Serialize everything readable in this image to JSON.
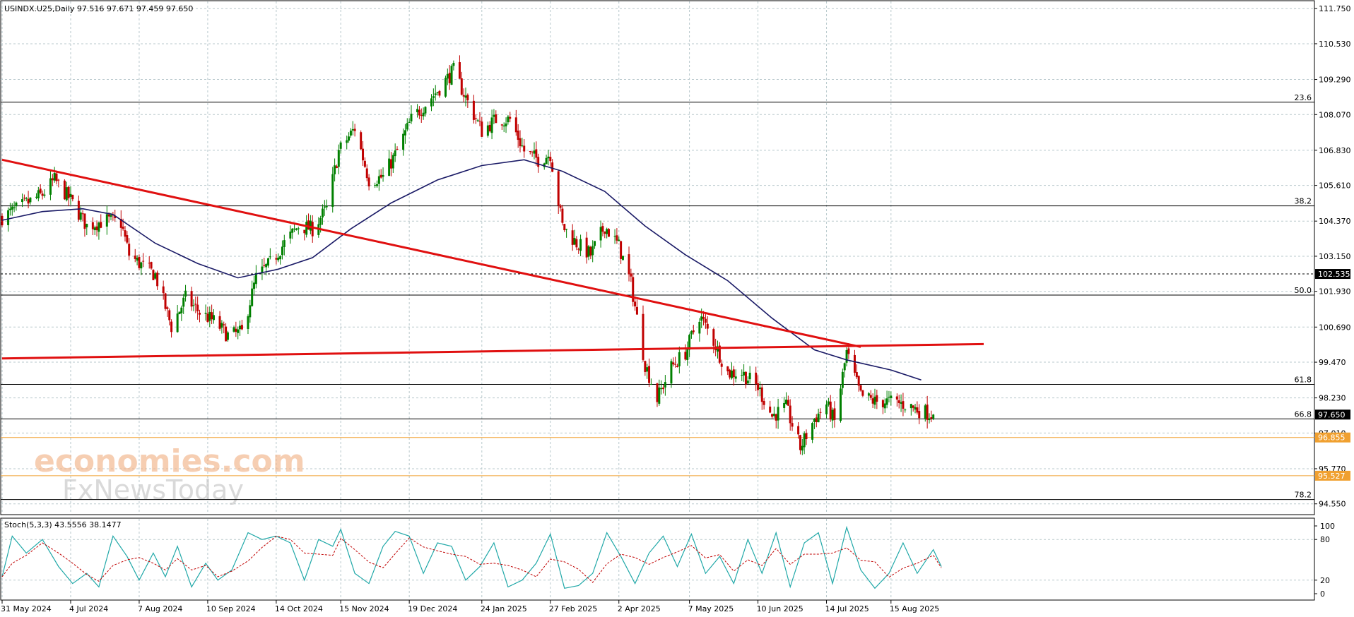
{
  "header": {
    "title": "USINDX.U25,Daily  97.516 97.671 97.459 97.650",
    "stoch_label": "Stoch(5,3,3) 43.5556 38.1477"
  },
  "watermark": {
    "line1": "economies.com",
    "line2": "FxNewsToday"
  },
  "colors": {
    "bull": "#008000",
    "bear": "#c00000",
    "ma": "#1a1a66",
    "trend": "#e01010",
    "grid": "#b8c8cc",
    "support": "#f0a030",
    "stoch_main": "#20a8a8",
    "stoch_signal": "#c00000"
  },
  "chart_data": [
    {
      "type": "candlestick",
      "symbol": "USINDX.U25",
      "timeframe": "Daily",
      "last": {
        "open": 97.516,
        "high": 97.671,
        "low": 97.459,
        "close": 97.65
      },
      "ylim": [
        94.2,
        112.0
      ],
      "y_ticks": [
        111.75,
        110.53,
        109.29,
        108.07,
        106.83,
        105.61,
        104.37,
        103.15,
        101.93,
        100.69,
        99.47,
        98.23,
        97.01,
        95.77,
        94.55
      ],
      "y_tick_labels": [
        "111.750",
        "110.530",
        "109.290",
        "108.070",
        "106.830",
        "105.610",
        "104.370",
        "103.150",
        "101.930",
        "100.690",
        "99.470",
        "98.230",
        "97.010",
        "95.770",
        "94.550"
      ],
      "x_labels": [
        {
          "label": "31 May 2024",
          "date": "2024-05-31"
        },
        {
          "label": "4 Jul 2024",
          "date": "2024-07-04"
        },
        {
          "label": "7 Aug 2024",
          "date": "2024-08-07"
        },
        {
          "label": "10 Sep 2024",
          "date": "2024-09-10"
        },
        {
          "label": "14 Oct 2024",
          "date": "2024-10-14"
        },
        {
          "label": "15 Nov 2024",
          "date": "2024-11-15"
        },
        {
          "label": "19 Dec 2024",
          "date": "2024-12-19"
        },
        {
          "label": "24 Jan 2025",
          "date": "2025-01-24"
        },
        {
          "label": "27 Feb 2025",
          "date": "2025-02-27"
        },
        {
          "label": "2 Apr 2025",
          "date": "2025-04-02"
        },
        {
          "label": "7 May 2025",
          "date": "2025-05-07"
        },
        {
          "label": "10 Jun 2025",
          "date": "2025-06-10"
        },
        {
          "label": "14 Jul 2025",
          "date": "2025-07-14"
        },
        {
          "label": "15 Aug 2025",
          "date": "2025-08-15"
        }
      ],
      "close_path": [
        [
          "2024-05-31",
          104.5
        ],
        [
          "2024-06-10",
          104.9
        ],
        [
          "2024-06-20",
          105.3
        ],
        [
          "2024-06-26",
          105.8
        ],
        [
          "2024-07-04",
          105.1
        ],
        [
          "2024-07-12",
          104.2
        ],
        [
          "2024-07-22",
          104.4
        ],
        [
          "2024-07-29",
          104.3
        ],
        [
          "2024-08-02",
          103.2
        ],
        [
          "2024-08-07",
          102.9
        ],
        [
          "2024-08-15",
          102.5
        ],
        [
          "2024-08-23",
          100.7
        ],
        [
          "2024-08-30",
          101.7
        ],
        [
          "2024-09-06",
          101.2
        ],
        [
          "2024-09-13",
          100.9
        ],
        [
          "2024-09-20",
          100.4
        ],
        [
          "2024-09-27",
          100.5
        ],
        [
          "2024-10-04",
          102.4
        ],
        [
          "2024-10-11",
          102.9
        ],
        [
          "2024-10-18",
          103.6
        ],
        [
          "2024-10-25",
          104.2
        ],
        [
          "2024-11-01",
          104.1
        ],
        [
          "2024-11-08",
          104.8
        ],
        [
          "2024-11-14",
          106.8
        ],
        [
          "2024-11-22",
          107.6
        ],
        [
          "2024-11-29",
          105.8
        ],
        [
          "2024-12-06",
          105.9
        ],
        [
          "2024-12-13",
          106.8
        ],
        [
          "2024-12-20",
          107.9
        ],
        [
          "2025-01-02",
          108.9
        ],
        [
          "2025-01-10",
          109.6
        ],
        [
          "2025-01-17",
          108.5
        ],
        [
          "2025-01-24",
          107.5
        ],
        [
          "2025-01-31",
          107.9
        ],
        [
          "2025-02-07",
          107.9
        ],
        [
          "2025-02-14",
          106.8
        ],
        [
          "2025-02-21",
          106.5
        ],
        [
          "2025-02-27",
          106.7
        ],
        [
          "2025-03-05",
          104.2
        ],
        [
          "2025-03-12",
          103.6
        ],
        [
          "2025-03-19",
          103.2
        ],
        [
          "2025-03-26",
          104.2
        ],
        [
          "2025-04-02",
          103.5
        ],
        [
          "2025-04-08",
          102.2
        ],
        [
          "2025-04-15",
          99.4
        ],
        [
          "2025-04-21",
          98.2
        ],
        [
          "2025-04-28",
          99.3
        ],
        [
          "2025-05-05",
          99.8
        ],
        [
          "2025-05-12",
          101.1
        ],
        [
          "2025-05-19",
          100.2
        ],
        [
          "2025-05-26",
          99.1
        ],
        [
          "2025-06-02",
          99.1
        ],
        [
          "2025-06-10",
          98.6
        ],
        [
          "2025-06-17",
          97.6
        ],
        [
          "2025-06-24",
          97.9
        ],
        [
          "2025-07-01",
          96.5
        ],
        [
          "2025-07-08",
          97.5
        ],
        [
          "2025-07-14",
          98.0
        ],
        [
          "2025-07-18",
          97.4
        ],
        [
          "2025-07-24",
          99.8
        ],
        [
          "2025-07-31",
          98.3
        ],
        [
          "2025-08-07",
          98.1
        ],
        [
          "2025-08-15",
          98.1
        ],
        [
          "2025-08-22",
          98.0
        ],
        [
          "2025-08-29",
          97.8
        ],
        [
          "2025-09-05",
          97.65
        ]
      ],
      "ma_path": [
        [
          "2024-05-31",
          104.4
        ],
        [
          "2024-06-20",
          104.7
        ],
        [
          "2024-07-10",
          104.8
        ],
        [
          "2024-07-25",
          104.6
        ],
        [
          "2024-08-15",
          103.6
        ],
        [
          "2024-09-05",
          102.9
        ],
        [
          "2024-09-25",
          102.4
        ],
        [
          "2024-10-15",
          102.7
        ],
        [
          "2024-11-01",
          103.1
        ],
        [
          "2024-11-20",
          104.1
        ],
        [
          "2024-12-10",
          105.0
        ],
        [
          "2025-01-02",
          105.8
        ],
        [
          "2025-01-24",
          106.3
        ],
        [
          "2025-02-14",
          106.5
        ],
        [
          "2025-03-05",
          106.1
        ],
        [
          "2025-03-26",
          105.4
        ],
        [
          "2025-04-15",
          104.2
        ],
        [
          "2025-05-05",
          103.2
        ],
        [
          "2025-05-26",
          102.3
        ],
        [
          "2025-06-17",
          101.0
        ],
        [
          "2025-07-08",
          99.9
        ],
        [
          "2025-07-24",
          99.55
        ],
        [
          "2025-08-15",
          99.2
        ],
        [
          "2025-08-30",
          98.85
        ]
      ],
      "trendlines": [
        {
          "from": [
            "2024-05-31",
            106.5
          ],
          "to": [
            "2025-07-31",
            100.0
          ]
        },
        {
          "from": [
            "2024-05-31",
            99.6
          ],
          "to": [
            "2025-09-30",
            100.1
          ]
        }
      ],
      "levels": [
        {
          "label": "23.6",
          "value": 108.5,
          "style": "solid"
        },
        {
          "label": "38.2",
          "value": 104.9,
          "style": "solid"
        },
        {
          "label": "102.535",
          "value": 102.535,
          "style": "dashed",
          "badge": true
        },
        {
          "label": "50.0",
          "value": 101.8,
          "style": "solid"
        },
        {
          "label": "61.8",
          "value": 98.7,
          "style": "solid"
        },
        {
          "label": "66.8",
          "value": 97.5,
          "style": "solid"
        },
        {
          "label": "96.855",
          "value": 96.855,
          "style": "support"
        },
        {
          "label": "95.527",
          "value": 95.527,
          "style": "support"
        },
        {
          "label": "78.2",
          "value": 94.7,
          "style": "solid"
        }
      ],
      "last_price_label": "97.650"
    },
    {
      "type": "line",
      "title": "Stoch(5,3,3)",
      "values": {
        "main": 43.5556,
        "signal": 38.1477
      },
      "ylim": [
        0,
        100
      ],
      "y_ticks": [
        100,
        80,
        20,
        0
      ],
      "y_tick_labels": [
        "100",
        "80",
        "20",
        "0"
      ],
      "main_path": [
        [
          "2024-05-31",
          25
        ],
        [
          "2024-06-05",
          85
        ],
        [
          "2024-06-12",
          60
        ],
        [
          "2024-06-20",
          80
        ],
        [
          "2024-06-28",
          40
        ],
        [
          "2024-07-05",
          15
        ],
        [
          "2024-07-12",
          30
        ],
        [
          "2024-07-18",
          10
        ],
        [
          "2024-07-25",
          85
        ],
        [
          "2024-08-01",
          55
        ],
        [
          "2024-08-07",
          20
        ],
        [
          "2024-08-14",
          60
        ],
        [
          "2024-08-20",
          25
        ],
        [
          "2024-08-26",
          70
        ],
        [
          "2024-09-02",
          10
        ],
        [
          "2024-09-09",
          45
        ],
        [
          "2024-09-15",
          20
        ],
        [
          "2024-09-22",
          35
        ],
        [
          "2024-09-30",
          90
        ],
        [
          "2024-10-07",
          80
        ],
        [
          "2024-10-14",
          85
        ],
        [
          "2024-10-21",
          75
        ],
        [
          "2024-10-28",
          20
        ],
        [
          "2024-11-04",
          80
        ],
        [
          "2024-11-11",
          70
        ],
        [
          "2024-11-15",
          95
        ],
        [
          "2024-11-22",
          30
        ],
        [
          "2024-11-29",
          15
        ],
        [
          "2024-12-06",
          70
        ],
        [
          "2024-12-12",
          92
        ],
        [
          "2024-12-19",
          85
        ],
        [
          "2024-12-26",
          30
        ],
        [
          "2025-01-02",
          75
        ],
        [
          "2025-01-09",
          70
        ],
        [
          "2025-01-16",
          20
        ],
        [
          "2025-01-23",
          40
        ],
        [
          "2025-01-30",
          75
        ],
        [
          "2025-02-06",
          10
        ],
        [
          "2025-02-13",
          20
        ],
        [
          "2025-02-20",
          45
        ],
        [
          "2025-02-27",
          88
        ],
        [
          "2025-03-06",
          8
        ],
        [
          "2025-03-13",
          12
        ],
        [
          "2025-03-20",
          30
        ],
        [
          "2025-03-27",
          90
        ],
        [
          "2025-04-03",
          55
        ],
        [
          "2025-04-10",
          15
        ],
        [
          "2025-04-17",
          60
        ],
        [
          "2025-04-24",
          85
        ],
        [
          "2025-05-01",
          40
        ],
        [
          "2025-05-08",
          88
        ],
        [
          "2025-05-15",
          30
        ],
        [
          "2025-05-22",
          55
        ],
        [
          "2025-05-29",
          15
        ],
        [
          "2025-06-05",
          80
        ],
        [
          "2025-06-12",
          30
        ],
        [
          "2025-06-19",
          90
        ],
        [
          "2025-06-26",
          10
        ],
        [
          "2025-07-03",
          75
        ],
        [
          "2025-07-10",
          90
        ],
        [
          "2025-07-17",
          15
        ],
        [
          "2025-07-24",
          98
        ],
        [
          "2025-07-31",
          35
        ],
        [
          "2025-08-07",
          8
        ],
        [
          "2025-08-14",
          30
        ],
        [
          "2025-08-21",
          75
        ],
        [
          "2025-08-28",
          30
        ],
        [
          "2025-09-05",
          65
        ],
        [
          "2025-09-09",
          40
        ]
      ]
    }
  ]
}
